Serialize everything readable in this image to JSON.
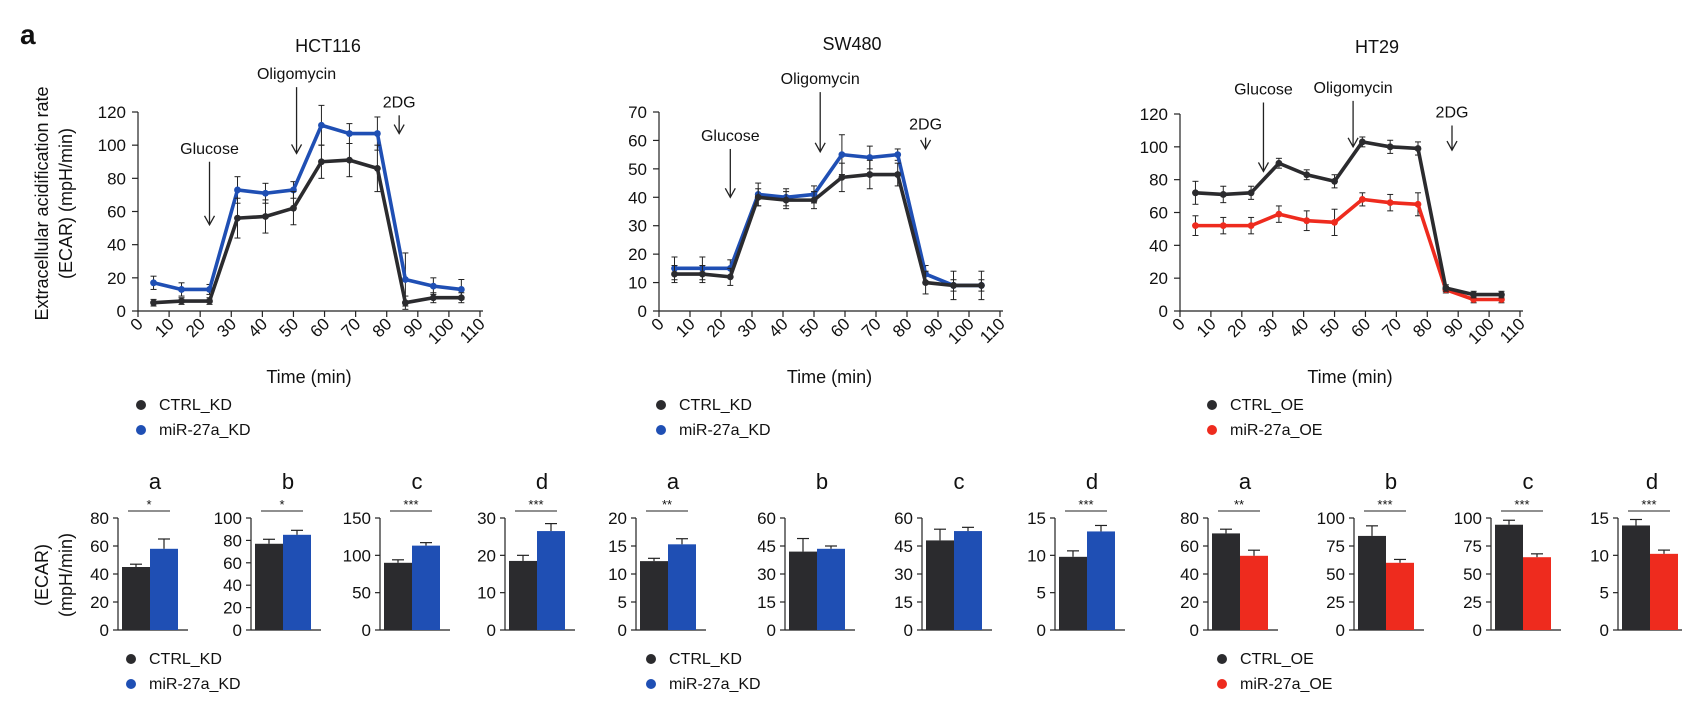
{
  "figure": {
    "panel_letter": "a"
  },
  "colors": {
    "ctrl": "#2b2b2e",
    "blue": "#1f4fb4",
    "red": "#ee2b1e"
  },
  "chart_data": [
    {
      "id": "hct116-line",
      "type": "line",
      "title": "HCT116",
      "xlabel": "Time (min)",
      "ylabel": [
        "Extracellular acidification rate",
        "(ECAR) (mpH/min)"
      ],
      "xlim": [
        0,
        110
      ],
      "ylim": [
        0,
        120
      ],
      "xticks": [
        0,
        10,
        20,
        30,
        40,
        50,
        60,
        70,
        80,
        90,
        100,
        110
      ],
      "yticks": [
        0,
        20,
        40,
        60,
        80,
        100,
        120
      ],
      "annotations": [
        {
          "text": "Glucose",
          "x": 23,
          "y_start": 90,
          "y_end": 52
        },
        {
          "text": "Oligomycin",
          "x": 51,
          "y_start": 135,
          "y_end": 95
        },
        {
          "text": "2DG",
          "x": 84,
          "y_start": 118,
          "y_end": 107
        }
      ],
      "series": [
        {
          "name": "CTRL_KD",
          "color": "#2b2b2e",
          "x": [
            5,
            14,
            23,
            32,
            41,
            50,
            59,
            68,
            77,
            86,
            95,
            104
          ],
          "y": [
            5,
            6,
            6,
            56,
            57,
            62,
            90,
            91,
            86,
            5,
            8,
            8
          ],
          "err": [
            2,
            2,
            2,
            12,
            10,
            10,
            10,
            10,
            14,
            4,
            3,
            3
          ]
        },
        {
          "name": "miR-27a_KD",
          "color": "#1f4fb4",
          "x": [
            5,
            14,
            23,
            32,
            41,
            50,
            59,
            68,
            77,
            86,
            95,
            104
          ],
          "y": [
            17,
            13,
            13,
            73,
            71,
            73,
            112,
            107,
            107,
            19,
            15,
            13
          ],
          "err": [
            4,
            4,
            3,
            8,
            6,
            5,
            12,
            6,
            10,
            16,
            5,
            6
          ]
        }
      ],
      "legend": [
        "CTRL_KD",
        "miR-27a_KD"
      ]
    },
    {
      "id": "sw480-line",
      "type": "line",
      "title": "SW480",
      "xlabel": "Time (min)",
      "xlim": [
        0,
        110
      ],
      "ylim": [
        0,
        70
      ],
      "xticks": [
        0,
        10,
        20,
        30,
        40,
        50,
        60,
        70,
        80,
        90,
        100,
        110
      ],
      "yticks": [
        0,
        10,
        20,
        30,
        40,
        50,
        60,
        70
      ],
      "annotations": [
        {
          "text": "Glucose",
          "x": 23,
          "y_start": 57,
          "y_end": 40
        },
        {
          "text": "Oligomycin",
          "x": 52,
          "y_start": 77,
          "y_end": 56
        },
        {
          "text": "2DG",
          "x": 86,
          "y_start": 61,
          "y_end": 57
        }
      ],
      "series": [
        {
          "name": "CTRL_KD",
          "color": "#2b2b2e",
          "x": [
            5,
            14,
            23,
            32,
            41,
            50,
            59,
            68,
            77,
            86,
            95,
            104
          ],
          "y": [
            13,
            13,
            12,
            40,
            39,
            39,
            47,
            48,
            48,
            10,
            9,
            9
          ],
          "err": [
            3,
            3,
            3,
            3,
            3,
            3,
            5,
            5,
            4,
            4,
            5,
            5
          ]
        },
        {
          "name": "miR-27a_KD",
          "color": "#1f4fb4",
          "x": [
            5,
            14,
            23,
            32,
            41,
            50,
            59,
            68,
            77,
            86,
            95,
            104
          ],
          "y": [
            15,
            15,
            15,
            41,
            40,
            41,
            55,
            54,
            55,
            13,
            9,
            9
          ],
          "err": [
            4,
            4,
            3,
            4,
            3,
            3,
            7,
            4,
            2,
            3,
            2,
            2
          ]
        }
      ],
      "legend": [
        "CTRL_KD",
        "miR-27a_KD"
      ]
    },
    {
      "id": "ht29-line",
      "type": "line",
      "title": "HT29",
      "xlabel": "Time (min)",
      "xlim": [
        0,
        110
      ],
      "ylim": [
        0,
        120
      ],
      "xticks": [
        0,
        10,
        20,
        30,
        40,
        50,
        60,
        70,
        80,
        90,
        100,
        110
      ],
      "yticks": [
        0,
        20,
        40,
        60,
        80,
        100,
        120
      ],
      "annotations": [
        {
          "text": "Glucose",
          "x": 27,
          "y_start": 127,
          "y_end": 85
        },
        {
          "text": "Oligomycin",
          "x": 56,
          "y_start": 128,
          "y_end": 100
        },
        {
          "text": "2DG",
          "x": 88,
          "y_start": 113,
          "y_end": 98
        }
      ],
      "series": [
        {
          "name": "CTRL_OE",
          "color": "#2b2b2e",
          "x": [
            5,
            14,
            23,
            32,
            41,
            50,
            59,
            68,
            77,
            86,
            95,
            104
          ],
          "y": [
            72,
            71,
            72,
            90,
            83,
            79,
            103,
            100,
            99,
            14,
            10,
            10
          ],
          "err": [
            7,
            5,
            4,
            3,
            3,
            4,
            3,
            4,
            4,
            2,
            2,
            2
          ]
        },
        {
          "name": "miR-27a_OE",
          "color": "#ee2b1e",
          "x": [
            5,
            14,
            23,
            32,
            41,
            50,
            59,
            68,
            77,
            86,
            95,
            104
          ],
          "y": [
            52,
            52,
            52,
            59,
            55,
            54,
            68,
            66,
            65,
            13,
            7,
            7
          ],
          "err": [
            6,
            5,
            5,
            5,
            6,
            8,
            4,
            5,
            7,
            2,
            2,
            2
          ]
        }
      ],
      "legend": [
        "CTRL_OE",
        "miR-27a_OE"
      ]
    },
    {
      "id": "hct116-bars",
      "type": "bar",
      "ylabel": [
        "(ECAR)",
        "(mpH/min)"
      ],
      "series_names": [
        "CTRL_KD",
        "miR-27a_KD"
      ],
      "panels": [
        {
          "label": "a",
          "ylim": [
            0,
            80
          ],
          "yticks": [
            0,
            20,
            40,
            60,
            80
          ],
          "values": [
            45,
            58
          ],
          "err": [
            2,
            7
          ],
          "sig": "*"
        },
        {
          "label": "b",
          "ylim": [
            0,
            100
          ],
          "yticks": [
            0,
            20,
            40,
            60,
            80,
            100
          ],
          "values": [
            77,
            85
          ],
          "err": [
            4,
            4
          ],
          "sig": "*"
        },
        {
          "label": "c",
          "ylim": [
            0,
            150
          ],
          "yticks": [
            0,
            50,
            100,
            150
          ],
          "values": [
            90,
            113
          ],
          "err": [
            4,
            4
          ],
          "sig": "***"
        },
        {
          "label": "d",
          "ylim": [
            0,
            30
          ],
          "yticks": [
            0,
            10,
            20,
            30
          ],
          "values": [
            18.5,
            26.5
          ],
          "err": [
            1.5,
            2
          ],
          "sig": "***"
        }
      ],
      "legend": [
        "CTRL_KD",
        "miR-27a_KD"
      ]
    },
    {
      "id": "sw480-bars",
      "type": "bar",
      "series_names": [
        "CTRL_KD",
        "miR-27a_KD"
      ],
      "panels": [
        {
          "label": "a",
          "ylim": [
            0,
            20
          ],
          "yticks": [
            0,
            5,
            10,
            15,
            20
          ],
          "values": [
            12.3,
            15.3
          ],
          "err": [
            0.5,
            1
          ],
          "sig": "**"
        },
        {
          "label": "b",
          "ylim": [
            0,
            60
          ],
          "yticks": [
            0,
            15,
            30,
            45,
            60
          ],
          "values": [
            42,
            43.5
          ],
          "err": [
            7,
            1.5
          ],
          "sig": ""
        },
        {
          "label": "c",
          "ylim": [
            0,
            60
          ],
          "yticks": [
            0,
            15,
            30,
            45,
            60
          ],
          "values": [
            48,
            53
          ],
          "err": [
            6,
            2
          ],
          "sig": ""
        },
        {
          "label": "d",
          "ylim": [
            0,
            15
          ],
          "yticks": [
            0,
            5,
            10,
            15
          ],
          "values": [
            9.8,
            13.2
          ],
          "err": [
            0.8,
            0.8
          ],
          "sig": "***"
        }
      ],
      "legend": [
        "CTRL_KD",
        "miR-27a_KD"
      ]
    },
    {
      "id": "ht29-bars",
      "type": "bar",
      "series_names": [
        "CTRL_OE",
        "miR-27a_OE"
      ],
      "panels": [
        {
          "label": "a",
          "ylim": [
            0,
            80
          ],
          "yticks": [
            0,
            20,
            40,
            60,
            80
          ],
          "values": [
            69,
            53
          ],
          "err": [
            3,
            4
          ],
          "sig": "**"
        },
        {
          "label": "b",
          "ylim": [
            0,
            100
          ],
          "yticks": [
            0,
            25,
            50,
            75,
            100
          ],
          "values": [
            84,
            60
          ],
          "err": [
            9,
            3
          ],
          "sig": "***"
        },
        {
          "label": "c",
          "ylim": [
            0,
            100
          ],
          "yticks": [
            0,
            25,
            50,
            75,
            100
          ],
          "values": [
            94,
            65
          ],
          "err": [
            4,
            3
          ],
          "sig": "***"
        },
        {
          "label": "d",
          "ylim": [
            0,
            15
          ],
          "yticks": [
            0,
            5,
            10,
            15
          ],
          "values": [
            14,
            10.2
          ],
          "err": [
            0.8,
            0.5
          ],
          "sig": "***"
        }
      ],
      "legend": [
        "CTRL_OE",
        "miR-27a_OE"
      ]
    }
  ]
}
